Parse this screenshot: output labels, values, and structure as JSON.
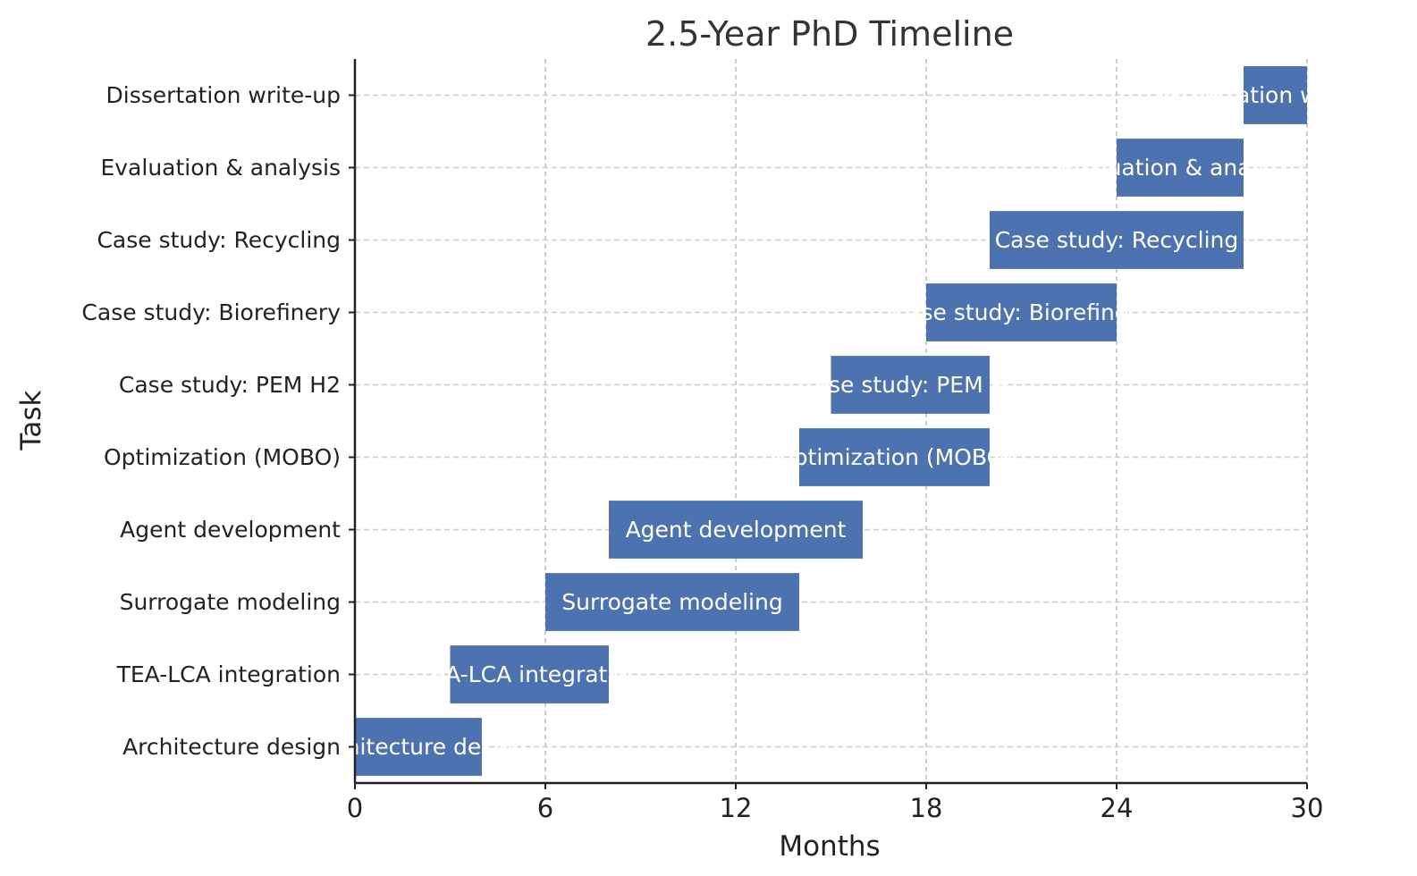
{
  "chart_data": {
    "type": "bar",
    "orientation": "horizontal",
    "variant": "gantt",
    "title": "2.5-Year PhD Timeline",
    "xlabel": "Months",
    "ylabel": "Task",
    "xlim": [
      0,
      30
    ],
    "xticks": [
      0,
      6,
      12,
      18,
      24,
      30
    ],
    "grid": true,
    "bar_color": "#4c72b0",
    "bar_label_color": "#ffffff",
    "tasks": [
      {
        "name": "Architecture design",
        "start": 0,
        "end": 4
      },
      {
        "name": "TEA-LCA integration",
        "start": 3,
        "end": 8
      },
      {
        "name": "Surrogate modeling",
        "start": 6,
        "end": 14
      },
      {
        "name": "Agent development",
        "start": 8,
        "end": 16
      },
      {
        "name": "Optimization (MOBO)",
        "start": 14,
        "end": 20
      },
      {
        "name": "Case study: PEM H2",
        "start": 15,
        "end": 20
      },
      {
        "name": "Case study: Biorefinery",
        "start": 18,
        "end": 24
      },
      {
        "name": "Case study: Recycling",
        "start": 20,
        "end": 28
      },
      {
        "name": "Evaluation & analysis",
        "start": 24,
        "end": 28
      },
      {
        "name": "Dissertation write-up",
        "start": 28,
        "end": 30
      }
    ]
  }
}
